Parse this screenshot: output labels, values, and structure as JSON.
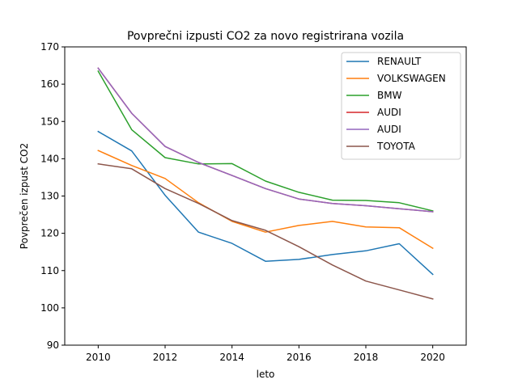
{
  "chart_data": {
    "type": "line",
    "title": "Povprečni izpusti CO2 za novo registrirana vozila",
    "xlabel": "leto",
    "ylabel": "Povprečen izpust CO2",
    "xlim": [
      2009,
      2021
    ],
    "ylim": [
      90,
      170
    ],
    "xticks": [
      2010,
      2012,
      2014,
      2016,
      2018,
      2020
    ],
    "yticks": [
      90,
      100,
      110,
      120,
      130,
      140,
      150,
      160,
      170
    ],
    "grid": false,
    "legend_position": "top-right",
    "x": [
      2010,
      2011,
      2012,
      2013,
      2014,
      2015,
      2016,
      2017,
      2018,
      2019,
      2020
    ],
    "series": [
      {
        "name": "RENAULT",
        "color": "#1f77b4",
        "values": [
          147.3,
          142.1,
          130.2,
          120.3,
          117.3,
          112.5,
          113.0,
          114.3,
          115.3,
          117.2,
          109.0
        ]
      },
      {
        "name": "VOLKSWAGEN",
        "color": "#ff7f0e",
        "values": [
          142.2,
          138.2,
          134.7,
          128.2,
          123.2,
          120.3,
          122.1,
          123.2,
          121.7,
          121.5,
          116.0
        ]
      },
      {
        "name": "BMW",
        "color": "#2ca02c",
        "values": [
          163.5,
          147.8,
          140.3,
          138.6,
          138.7,
          134.0,
          131.0,
          128.9,
          128.8,
          128.2,
          126.0
        ]
      },
      {
        "name": "AUDI",
        "color": "#d62728",
        "values": [
          164.3,
          152.2,
          143.3,
          139.0,
          135.5,
          132.0,
          129.2,
          128.0,
          127.4,
          126.6,
          125.8
        ]
      },
      {
        "name": "AUDI",
        "color": "#9467bd",
        "values": [
          164.3,
          152.2,
          143.3,
          139.0,
          135.5,
          132.0,
          129.2,
          128.0,
          127.4,
          126.6,
          125.8
        ]
      },
      {
        "name": "TOYOTA",
        "color": "#8c564b",
        "values": [
          138.6,
          137.3,
          132.0,
          128.0,
          123.4,
          120.8,
          116.4,
          111.5,
          107.2,
          104.8,
          102.4
        ]
      }
    ]
  }
}
